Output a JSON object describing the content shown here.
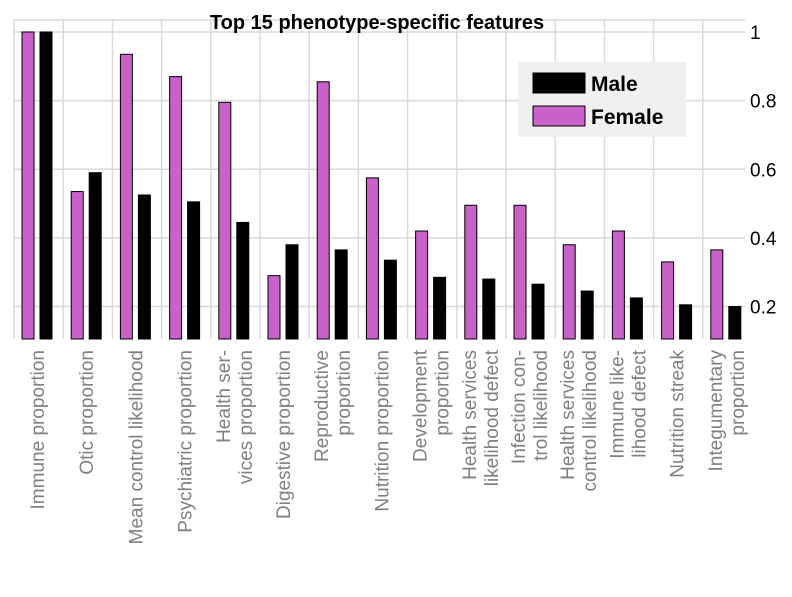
{
  "chart_data": {
    "type": "bar",
    "title": "Top 15 phenotype-specific features",
    "xlabel": "",
    "ylabel": "",
    "ylim": [
      0.12,
      1.02
    ],
    "yticks": [
      0.2,
      0.4,
      0.6,
      0.8,
      1
    ],
    "ytick_labels": [
      "0.2",
      "0.4",
      "0.6",
      "0.8",
      "1"
    ],
    "y_axis_side": "right",
    "grid": true,
    "legend_position": "top-right",
    "categories": [
      [
        "Immune proportion"
      ],
      [
        "Otic proportion"
      ],
      [
        "Mean control likelihood"
      ],
      [
        "Psychiatric proportion"
      ],
      [
        "Health ser-",
        "vices proportion"
      ],
      [
        "Digestive proportion"
      ],
      [
        "Reproductive",
        "proportion"
      ],
      [
        "Nutrition proportion"
      ],
      [
        "Development",
        "proportion"
      ],
      [
        "Health services",
        "likelihood defect"
      ],
      [
        "Infection con-",
        "trol likelihood"
      ],
      [
        "Health services",
        "control likelihood"
      ],
      [
        "Immune like-",
        "lihood defect"
      ],
      [
        "Nutrition streak"
      ],
      [
        "Integumentary",
        "proportion"
      ]
    ],
    "series": [
      {
        "name": "Female",
        "color": "#c862c8",
        "values": [
          1.0,
          0.535,
          0.935,
          0.87,
          0.795,
          0.29,
          0.855,
          0.575,
          0.42,
          0.495,
          0.495,
          0.38,
          0.42,
          0.33,
          0.365
        ]
      },
      {
        "name": "Male",
        "color": "#000000",
        "values": [
          1.0,
          0.59,
          0.525,
          0.505,
          0.445,
          0.38,
          0.365,
          0.335,
          0.285,
          0.28,
          0.265,
          0.245,
          0.225,
          0.205,
          0.2
        ]
      }
    ],
    "legend": [
      {
        "name": "Male",
        "color": "#000000"
      },
      {
        "name": "Female",
        "color": "#c862c8"
      }
    ]
  }
}
